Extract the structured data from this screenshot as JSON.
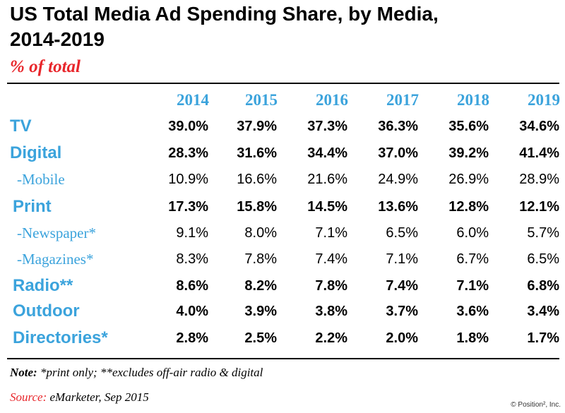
{
  "chart_data": {
    "type": "table",
    "title_line1": "US Total Media Ad Spending Share, by Media,",
    "title_line2": "2014-2019",
    "subtitle": "% of total",
    "columns": [
      "2014",
      "2015",
      "2016",
      "2017",
      "2018",
      "2019"
    ],
    "rows": [
      {
        "label": "TV",
        "sub": false,
        "values": [
          "39.0%",
          "37.9%",
          "37.3%",
          "36.3%",
          "35.6%",
          "34.6%"
        ]
      },
      {
        "label": "Digital",
        "sub": false,
        "values": [
          "28.3%",
          "31.6%",
          "34.4%",
          "37.0%",
          "39.2%",
          "41.4%"
        ]
      },
      {
        "label": "-Mobile",
        "sub": true,
        "values": [
          "10.9%",
          "16.6%",
          "21.6%",
          "24.9%",
          "26.9%",
          "28.9%"
        ]
      },
      {
        "label": "Print",
        "sub": false,
        "values": [
          "17.3%",
          "15.8%",
          "14.5%",
          "13.6%",
          "12.8%",
          "12.1%"
        ]
      },
      {
        "label": "-Newspaper*",
        "sub": true,
        "values": [
          "9.1%",
          "8.0%",
          "7.1%",
          "6.5%",
          "6.0%",
          "5.7%"
        ]
      },
      {
        "label": "-Magazines*",
        "sub": true,
        "values": [
          "8.3%",
          "7.8%",
          "7.4%",
          "7.1%",
          "6.7%",
          "6.5%"
        ]
      },
      {
        "label": "Radio**",
        "sub": false,
        "values": [
          "8.6%",
          "8.2%",
          "7.8%",
          "7.4%",
          "7.1%",
          "6.8%"
        ]
      },
      {
        "label": "Outdoor",
        "sub": false,
        "values": [
          "4.0%",
          "3.9%",
          "3.8%",
          "3.7%",
          "3.6%",
          "3.4%"
        ]
      },
      {
        "label": "Directories*",
        "sub": false,
        "values": [
          "2.8%",
          "2.5%",
          "2.2%",
          "2.0%",
          "1.8%",
          "1.7%"
        ]
      }
    ],
    "note_label": "Note:",
    "note_text": " *print only; **excludes off-air radio & digital",
    "source_label": "Source:",
    "source_text": " eMarketer, Sep 2015",
    "copyright": "© Position², Inc."
  },
  "colors": {
    "header_blue": "#3ba3dc",
    "subtitle_red": "#e8262b",
    "text": "#000000"
  }
}
